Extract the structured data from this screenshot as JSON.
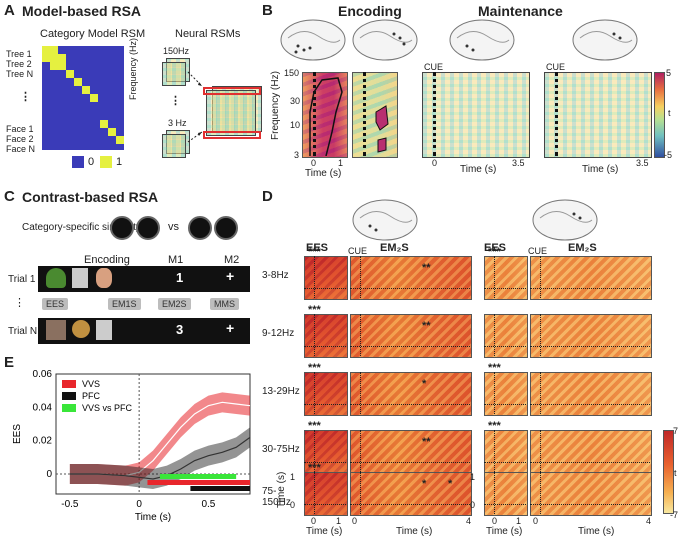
{
  "panelA": {
    "letter": "A",
    "title": "Model-based RSA",
    "cat_model_title": "Category Model RSM",
    "neural_title": "Neural RSMs",
    "rows": [
      "Tree 1",
      "Tree 2",
      "Tree N",
      "Face 1",
      "Face 2",
      "Face N"
    ],
    "dots": "⋮",
    "legend": [
      {
        "value": "0",
        "color": "#3a3bb8"
      },
      {
        "value": "1",
        "color": "#e5f040"
      }
    ],
    "freq_top": "150Hz",
    "freq_bottom": "3 Hz",
    "freq_axis": "Frequency (Hz)"
  },
  "panelB": {
    "letter": "B",
    "encoding": "Encoding",
    "maintenance": "Maintenance",
    "y_ticks": [
      "150",
      "30",
      "10",
      "3"
    ],
    "y_axis": "Frequency (Hz)",
    "enc_x_ticks": [
      "0",
      "1"
    ],
    "maint_x_ticks": [
      "0",
      "3.5"
    ],
    "x_axis": "Time (s)",
    "cue": "CUE",
    "colorbar": {
      "max": "5",
      "min": "-5",
      "label": "t"
    }
  },
  "panelC": {
    "letter": "C",
    "title": "Contrast-based RSA",
    "similarity": "Category-specific similarity:",
    "vs": "vs",
    "cols": [
      "Encoding",
      "M1",
      "M2"
    ],
    "trial1": "Trial 1",
    "trialN": "Trial N",
    "trial1_m1": "1",
    "trialN_m1": "3",
    "m2_symbol": "+",
    "labels": [
      "EES",
      "EM1S",
      "EM2S",
      "MMS"
    ]
  },
  "panelD": {
    "letter": "D",
    "ees": "EES",
    "em2s": "EM₂S",
    "cue": "CUE",
    "bands": [
      {
        "label": "3-8Hz",
        "sig_ees_l": "***",
        "sig_em_l": "**",
        "sig_ees_r": "***"
      },
      {
        "label": "9-12Hz",
        "sig_ees_l": "***",
        "sig_em_l": "**",
        "sig_ees_r": ""
      },
      {
        "label": "13-29Hz",
        "sig_ees_l": "***",
        "sig_em_l": "*",
        "sig_ees_r": "***"
      },
      {
        "label": "30-75Hz",
        "sig_ees_l": "***",
        "sig_em_l": "**",
        "sig_ees_r": "***"
      },
      {
        "label": "75-150Hz",
        "sig_ees_l": "***",
        "sig_em_l": "*",
        "sig_em_l2": "*",
        "sig_ees_r": ""
      }
    ],
    "y_ticks": [
      "1",
      "0"
    ],
    "y_axis": "Time (s)",
    "x_axis": "Time (s)",
    "ees_x": [
      "0",
      "1"
    ],
    "em_x": [
      "0",
      "4"
    ],
    "colorbar": {
      "max": "7",
      "min": "-7",
      "label": "t"
    }
  },
  "panelE": {
    "letter": "E",
    "chart_data": {
      "type": "line",
      "title": "",
      "xlabel": "Time (s)",
      "ylabel": "EES",
      "xlim": [
        -0.6,
        0.8
      ],
      "ylim": [
        -0.012,
        0.06
      ],
      "x_ticks": [
        "-0.5",
        "0",
        "0.5"
      ],
      "y_ticks": [
        "0",
        "0.02",
        "0.04",
        "0.06"
      ],
      "series": [
        {
          "name": "VVS",
          "color": "#e8262c",
          "x": [
            -0.5,
            -0.3,
            -0.1,
            0,
            0.1,
            0.2,
            0.3,
            0.4,
            0.5,
            0.6,
            0.7,
            0.8
          ],
          "values": [
            0,
            0,
            -0.001,
            0.001,
            0.008,
            0.018,
            0.028,
            0.036,
            0.041,
            0.043,
            0.042,
            0.041
          ]
        },
        {
          "name": "PFC",
          "color": "#111111",
          "x": [
            -0.5,
            -0.3,
            -0.1,
            0,
            0.1,
            0.2,
            0.3,
            0.4,
            0.5,
            0.6,
            0.7,
            0.8
          ],
          "values": [
            0,
            0,
            -0.001,
            -0.002,
            -0.003,
            -0.001,
            0.003,
            0.008,
            0.011,
            0.013,
            0.016,
            0.022
          ]
        },
        {
          "name": "VVS vs PFC",
          "color": "#39e639",
          "x": [],
          "values": []
        }
      ],
      "sig_bars": [
        {
          "series": "VVS vs PFC",
          "color": "#39e639",
          "from": 0.15,
          "to": 0.7
        },
        {
          "series": "VVS",
          "color": "#e8262c",
          "from": 0.06,
          "to": 0.8
        },
        {
          "series": "PFC",
          "color": "#111111",
          "from": 0.37,
          "to": 0.8
        }
      ]
    }
  }
}
